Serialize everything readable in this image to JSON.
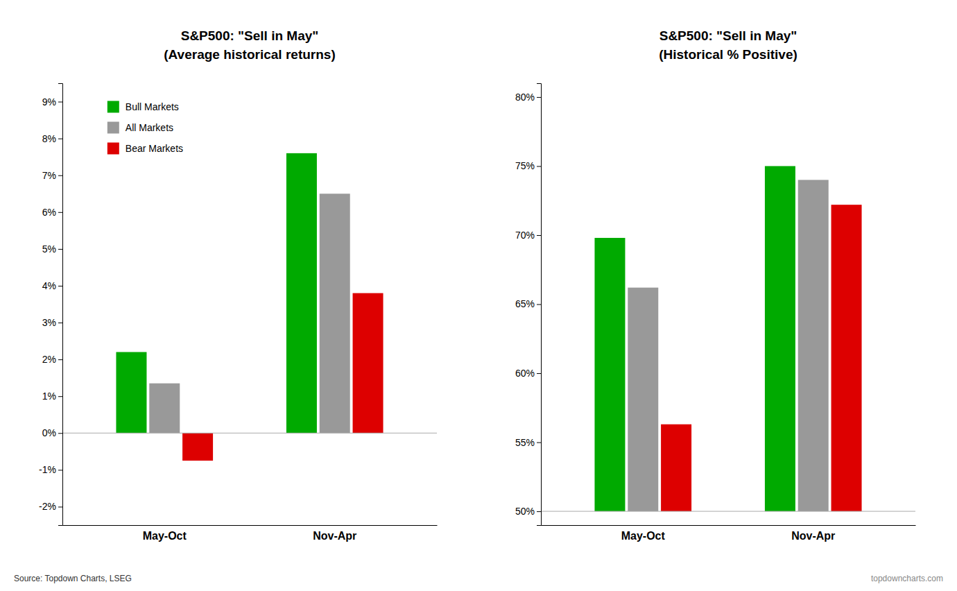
{
  "chart_data": [
    {
      "type": "bar",
      "title": "S&P500: \"Sell in May\"",
      "subtitle": "(Average historical returns)",
      "categories": [
        "May-Oct",
        "Nov-Apr"
      ],
      "series": [
        {
          "name": "Bull Markets",
          "color": "#00aa00",
          "values": [
            2.2,
            7.6
          ]
        },
        {
          "name": "All Markets",
          "color": "#999999",
          "values": [
            1.35,
            6.5
          ]
        },
        {
          "name": "Bear Markets",
          "color": "#dd0000",
          "values": [
            -0.75,
            3.8
          ]
        }
      ],
      "baseline": 0,
      "ylim": [
        -2.5,
        9.5
      ],
      "yticks": [
        {
          "value": -2,
          "label": "-2%"
        },
        {
          "value": -1,
          "label": "-1%"
        },
        {
          "value": 0,
          "label": "0%"
        },
        {
          "value": 1,
          "label": "1%"
        },
        {
          "value": 2,
          "label": "2%"
        },
        {
          "value": 3,
          "label": "3%"
        },
        {
          "value": 4,
          "label": "4%"
        },
        {
          "value": 5,
          "label": "5%"
        },
        {
          "value": 6,
          "label": "6%"
        },
        {
          "value": 7,
          "label": "7%"
        },
        {
          "value": 8,
          "label": "8%"
        },
        {
          "value": 9,
          "label": "9%"
        }
      ],
      "grid": false,
      "legend": "upper left",
      "annotations": [
        "Source: Topdown Charts, LSEG"
      ]
    },
    {
      "type": "bar",
      "title": "S&P500: \"Sell in May\"",
      "subtitle": "(Historical % Positive)",
      "categories": [
        "May-Oct",
        "Nov-Apr"
      ],
      "series": [
        {
          "color": "#00aa00",
          "values": [
            69.8,
            75.0
          ]
        },
        {
          "color": "#999999",
          "values": [
            66.2,
            74.0
          ]
        },
        {
          "color": "#dd0000",
          "values": [
            56.3,
            72.2
          ]
        }
      ],
      "baseline": 50,
      "ylim": [
        49,
        81
      ],
      "yticks": [
        {
          "value": 50,
          "label": "50%"
        },
        {
          "value": 55,
          "label": "55%"
        },
        {
          "value": 60,
          "label": "60%"
        },
        {
          "value": 65,
          "label": "65%"
        },
        {
          "value": 70,
          "label": "70%"
        },
        {
          "value": 75,
          "label": "75%"
        },
        {
          "value": 80,
          "label": "80%"
        }
      ],
      "grid": false,
      "annotations": [
        "topdowncharts.com"
      ]
    }
  ]
}
